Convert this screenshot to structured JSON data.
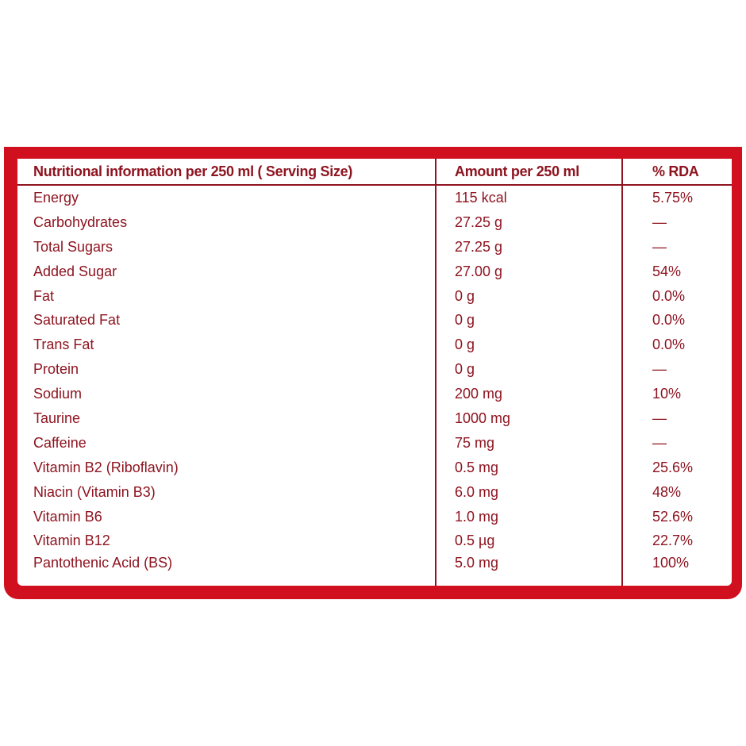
{
  "table": {
    "header": [
      "Nutritional information per 250 ml ( Serving Size)",
      "Amount per 250 ml",
      "% RDA"
    ],
    "rows": [
      [
        "Energy",
        "115 kcal",
        "5.75%"
      ],
      [
        "Carbohydrates",
        "27.25 g",
        "—"
      ],
      [
        "Total Sugars",
        "27.25 g",
        "—"
      ],
      [
        "Added Sugar",
        "27.00 g",
        "54%"
      ],
      [
        "Fat",
        "0 g",
        "0.0%"
      ],
      [
        "Saturated Fat",
        "0 g",
        "0.0%"
      ],
      [
        "Trans Fat",
        "0 g",
        "0.0%"
      ],
      [
        "Protein",
        "0 g",
        "—"
      ],
      [
        "Sodium",
        "200 mg",
        "10%"
      ],
      [
        "Taurine",
        "1000 mg",
        "—"
      ],
      [
        "Caffeine",
        "75 mg",
        "—"
      ],
      [
        "Vitamin B2 (Riboflavin)",
        "0.5 mg",
        "25.6%"
      ],
      [
        "Niacin (Vitamin B3)",
        "6.0 mg",
        "48%"
      ],
      [
        "Vitamin B6",
        "1.0 mg",
        "52.6%"
      ],
      [
        "Vitamin B12",
        "0.5 µg",
        "22.7%"
      ],
      [
        "Pantothenic Acid (BS)",
        "5.0 mg",
        "100%"
      ]
    ]
  }
}
